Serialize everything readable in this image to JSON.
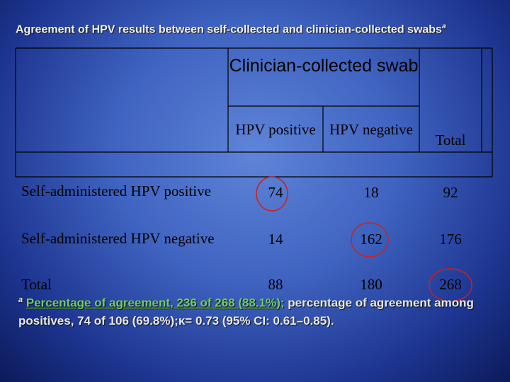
{
  "header": {
    "title": "Agreement of HPV results between self-collected and clinician-collected swabs",
    "title_note": "a"
  },
  "table": {
    "group_header": "Clinician-collected swab",
    "columns": [
      "HPV positive",
      "HPV negative",
      "Total"
    ],
    "rows": [
      [
        "Self-administered HPV positive",
        74,
        18,
        92
      ],
      [
        "Self-administered HPV negative",
        14,
        162,
        176
      ],
      [
        "Total",
        88,
        180,
        268
      ]
    ]
  },
  "footnote": {
    "marker": "a",
    "highlight": "Percentage of agreement, 236 of 268 (88.1%);",
    "text": " percentage of agreement among positives, 74 of 106 (69.8%);κ= 0.73 (95% CI: 0.61–0.85)."
  }
}
